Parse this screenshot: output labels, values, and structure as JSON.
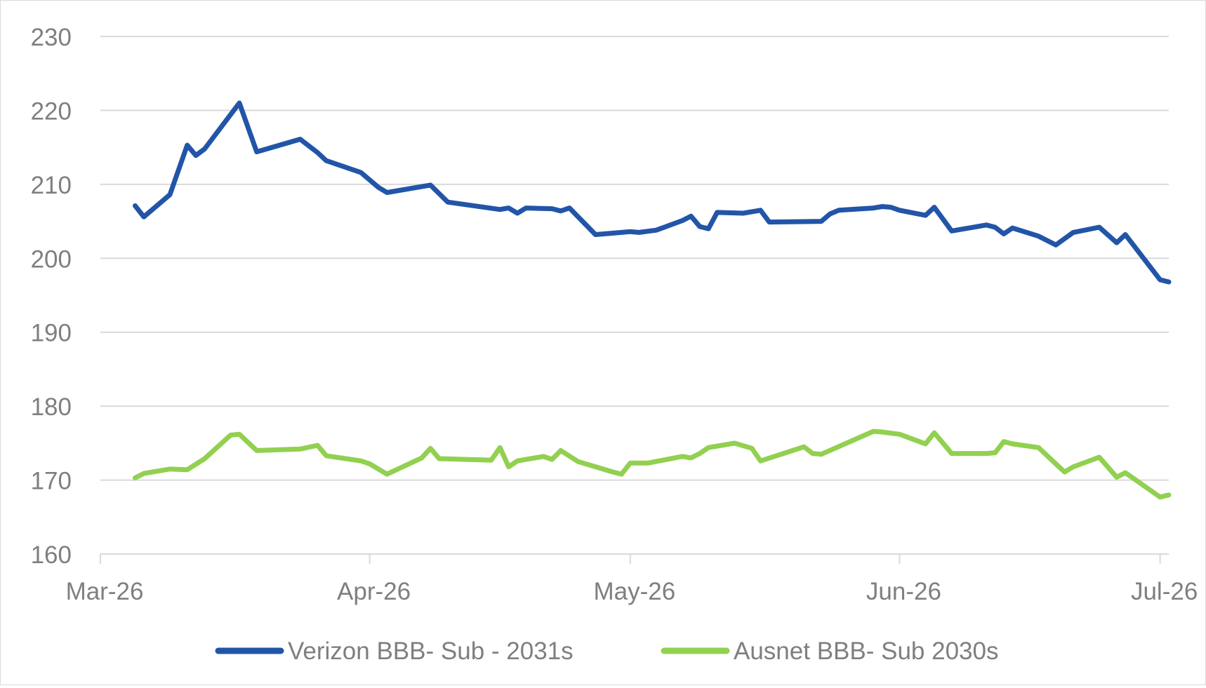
{
  "chart_data": {
    "type": "line",
    "title": "",
    "xlabel": "",
    "ylabel": "",
    "ylim": [
      160,
      230
    ],
    "yticks": [
      160,
      170,
      180,
      190,
      200,
      210,
      220,
      230
    ],
    "xlim": [
      "2026-03-01",
      "2026-07-02"
    ],
    "xticks": [
      {
        "date": "2026-03-01",
        "label": "Mar-26"
      },
      {
        "date": "2026-04-01",
        "label": "Apr-26"
      },
      {
        "date": "2026-05-01",
        "label": "May-26"
      },
      {
        "date": "2026-06-01",
        "label": "Jun-26"
      },
      {
        "date": "2026-07-01",
        "label": "Jul-26"
      }
    ],
    "grid": "horizontal",
    "legend": "bottom",
    "series": [
      {
        "name": "Verizon BBB- Sub - 2031s",
        "color": "#2255a8",
        "points": [
          [
            "2026-03-05",
            207.1
          ],
          [
            "2026-03-06",
            205.6
          ],
          [
            "2026-03-09",
            208.6
          ],
          [
            "2026-03-11",
            215.3
          ],
          [
            "2026-03-12",
            213.9
          ],
          [
            "2026-03-13",
            214.8
          ],
          [
            "2026-03-17",
            221.0
          ],
          [
            "2026-03-19",
            214.4
          ],
          [
            "2026-03-24",
            216.1
          ],
          [
            "2026-03-26",
            214.3
          ],
          [
            "2026-03-27",
            213.2
          ],
          [
            "2026-03-31",
            211.6
          ],
          [
            "2026-04-02",
            209.6
          ],
          [
            "2026-04-03",
            208.9
          ],
          [
            "2026-04-08",
            209.9
          ],
          [
            "2026-04-10",
            207.6
          ],
          [
            "2026-04-16",
            206.6
          ],
          [
            "2026-04-17",
            206.8
          ],
          [
            "2026-04-18",
            206.1
          ],
          [
            "2026-04-19",
            206.8
          ],
          [
            "2026-04-22",
            206.7
          ],
          [
            "2026-04-23",
            206.4
          ],
          [
            "2026-04-24",
            206.8
          ],
          [
            "2026-04-27",
            203.2
          ],
          [
            "2026-05-01",
            203.6
          ],
          [
            "2026-05-02",
            203.5
          ],
          [
            "2026-05-04",
            203.8
          ],
          [
            "2026-05-07",
            205.1
          ],
          [
            "2026-05-08",
            205.7
          ],
          [
            "2026-05-09",
            204.3
          ],
          [
            "2026-05-10",
            204.0
          ],
          [
            "2026-05-11",
            206.2
          ],
          [
            "2026-05-14",
            206.1
          ],
          [
            "2026-05-16",
            206.5
          ],
          [
            "2026-05-17",
            204.9
          ],
          [
            "2026-05-23",
            205.0
          ],
          [
            "2026-05-24",
            206.0
          ],
          [
            "2026-05-25",
            206.5
          ],
          [
            "2026-05-29",
            206.8
          ],
          [
            "2026-05-30",
            207.0
          ],
          [
            "2026-05-31",
            206.9
          ],
          [
            "2026-06-01",
            206.5
          ],
          [
            "2026-06-04",
            205.8
          ],
          [
            "2026-06-05",
            206.9
          ],
          [
            "2026-06-07",
            203.7
          ],
          [
            "2026-06-11",
            204.5
          ],
          [
            "2026-06-12",
            204.2
          ],
          [
            "2026-06-13",
            203.3
          ],
          [
            "2026-06-14",
            204.1
          ],
          [
            "2026-06-17",
            203.0
          ],
          [
            "2026-06-19",
            201.8
          ],
          [
            "2026-06-21",
            203.5
          ],
          [
            "2026-06-24",
            204.2
          ],
          [
            "2026-06-26",
            202.1
          ],
          [
            "2026-06-27",
            203.2
          ],
          [
            "2026-07-01",
            197.1
          ],
          [
            "2026-07-02",
            196.8
          ]
        ]
      },
      {
        "name": "Ausnet BBB- Sub 2030s",
        "color": "#92d050",
        "points": [
          [
            "2026-03-05",
            170.3
          ],
          [
            "2026-03-06",
            170.9
          ],
          [
            "2026-03-09",
            171.5
          ],
          [
            "2026-03-11",
            171.4
          ],
          [
            "2026-03-13",
            172.9
          ],
          [
            "2026-03-16",
            176.1
          ],
          [
            "2026-03-17",
            176.2
          ],
          [
            "2026-03-19",
            174.0
          ],
          [
            "2026-03-24",
            174.2
          ],
          [
            "2026-03-26",
            174.7
          ],
          [
            "2026-03-27",
            173.3
          ],
          [
            "2026-03-31",
            172.6
          ],
          [
            "2026-04-01",
            172.2
          ],
          [
            "2026-04-03",
            170.8
          ],
          [
            "2026-04-07",
            173.0
          ],
          [
            "2026-04-08",
            174.3
          ],
          [
            "2026-04-09",
            172.9
          ],
          [
            "2026-04-15",
            172.7
          ],
          [
            "2026-04-16",
            174.4
          ],
          [
            "2026-04-17",
            171.8
          ],
          [
            "2026-04-18",
            172.6
          ],
          [
            "2026-04-21",
            173.2
          ],
          [
            "2026-04-22",
            172.8
          ],
          [
            "2026-04-23",
            174.0
          ],
          [
            "2026-04-25",
            172.5
          ],
          [
            "2026-04-29",
            171.1
          ],
          [
            "2026-04-30",
            170.8
          ],
          [
            "2026-05-01",
            172.3
          ],
          [
            "2026-05-03",
            172.3
          ],
          [
            "2026-05-07",
            173.2
          ],
          [
            "2026-05-08",
            173.0
          ],
          [
            "2026-05-09",
            173.6
          ],
          [
            "2026-05-10",
            174.4
          ],
          [
            "2026-05-13",
            175.0
          ],
          [
            "2026-05-15",
            174.3
          ],
          [
            "2026-05-16",
            172.6
          ],
          [
            "2026-05-21",
            174.5
          ],
          [
            "2026-05-22",
            173.6
          ],
          [
            "2026-05-23",
            173.5
          ],
          [
            "2026-05-29",
            176.6
          ],
          [
            "2026-05-30",
            176.5
          ],
          [
            "2026-06-01",
            176.2
          ],
          [
            "2026-06-04",
            174.9
          ],
          [
            "2026-06-05",
            176.4
          ],
          [
            "2026-06-07",
            173.6
          ],
          [
            "2026-06-11",
            173.6
          ],
          [
            "2026-06-12",
            173.7
          ],
          [
            "2026-06-13",
            175.2
          ],
          [
            "2026-06-14",
            174.9
          ],
          [
            "2026-06-17",
            174.4
          ],
          [
            "2026-06-19",
            172.2
          ],
          [
            "2026-06-20",
            171.1
          ],
          [
            "2026-06-21",
            171.8
          ],
          [
            "2026-06-24",
            173.1
          ],
          [
            "2026-06-26",
            170.4
          ],
          [
            "2026-06-27",
            171.0
          ],
          [
            "2026-07-01",
            167.7
          ],
          [
            "2026-07-02",
            168.0
          ]
        ]
      }
    ]
  }
}
